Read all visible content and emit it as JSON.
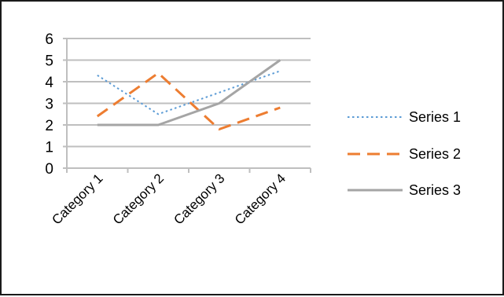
{
  "chart_data": {
    "type": "line",
    "categories": [
      "Category 1",
      "Category 2",
      "Category 3",
      "Category 4"
    ],
    "series": [
      {
        "name": "Series 1",
        "values": [
          4.3,
          2.5,
          3.5,
          4.5
        ],
        "color": "#5B9BD5",
        "dash": "dotted"
      },
      {
        "name": "Series 2",
        "values": [
          2.4,
          4.4,
          1.8,
          2.8
        ],
        "color": "#ED7D31",
        "dash": "dashed"
      },
      {
        "name": "Series 3",
        "values": [
          2,
          2,
          3,
          5
        ],
        "color": "#A5A5A5",
        "dash": "solid"
      }
    ],
    "ylim": [
      0,
      6
    ],
    "yticks": [
      "0",
      "1",
      "2",
      "3",
      "4",
      "5",
      "6"
    ],
    "grid": true,
    "gridColor": "#BFBFBF",
    "legend": "right"
  }
}
